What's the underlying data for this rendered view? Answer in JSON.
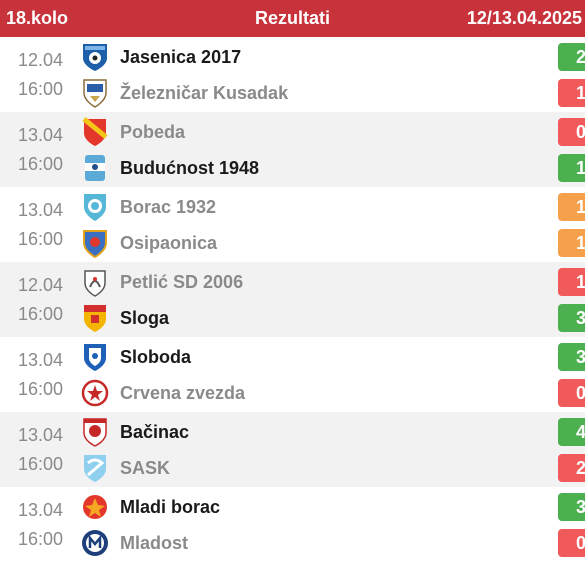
{
  "header": {
    "round": "18.kolo",
    "title": "Rezultati",
    "dates": "12/13.04.2025"
  },
  "colors": {
    "header_bg": "#c8323b",
    "win": "#4caf50",
    "lose": "#f05a5a",
    "draw": "#f5a14b"
  },
  "matches": [
    {
      "date": "12.04",
      "time": "16:00",
      "home": {
        "name": "Jasenica 2017",
        "score": "2",
        "result": "win",
        "crest": "jasenica-crest-icon"
      },
      "away": {
        "name": "Železničar Kusadak",
        "score": "1",
        "result": "lose",
        "crest": "zeleznicar-crest-icon"
      }
    },
    {
      "date": "13.04",
      "time": "16:00",
      "home": {
        "name": "Pobeda",
        "score": "0",
        "result": "lose",
        "crest": "pobeda-crest-icon"
      },
      "away": {
        "name": "Budućnost 1948",
        "score": "1",
        "result": "win",
        "crest": "buducnost-crest-icon"
      }
    },
    {
      "date": "13.04",
      "time": "16:00",
      "home": {
        "name": "Borac 1932",
        "score": "1",
        "result": "draw",
        "crest": "borac-crest-icon"
      },
      "away": {
        "name": "Osipaonica",
        "score": "1",
        "result": "draw",
        "crest": "osipaonica-crest-icon"
      }
    },
    {
      "date": "12.04",
      "time": "16:00",
      "home": {
        "name": "Petlić SD 2006",
        "score": "1",
        "result": "lose",
        "crest": "petlic-crest-icon"
      },
      "away": {
        "name": "Sloga",
        "score": "3",
        "result": "win",
        "crest": "sloga-crest-icon"
      }
    },
    {
      "date": "13.04",
      "time": "16:00",
      "home": {
        "name": "Sloboda",
        "score": "3",
        "result": "win",
        "crest": "sloboda-crest-icon"
      },
      "away": {
        "name": "Crvena zvezda",
        "score": "0",
        "result": "lose",
        "crest": "crvena-zvezda-crest-icon"
      }
    },
    {
      "date": "13.04",
      "time": "16:00",
      "home": {
        "name": "Bačinac",
        "score": "4",
        "result": "win",
        "crest": "bacinac-crest-icon"
      },
      "away": {
        "name": "SASK",
        "score": "2",
        "result": "lose",
        "crest": "sask-crest-icon"
      }
    },
    {
      "date": "13.04",
      "time": "16:00",
      "home": {
        "name": "Mladi borac",
        "score": "3",
        "result": "win",
        "crest": "mladi-borac-crest-icon"
      },
      "away": {
        "name": "Mladost",
        "score": "0",
        "result": "lose",
        "crest": "mladost-crest-icon"
      }
    }
  ]
}
